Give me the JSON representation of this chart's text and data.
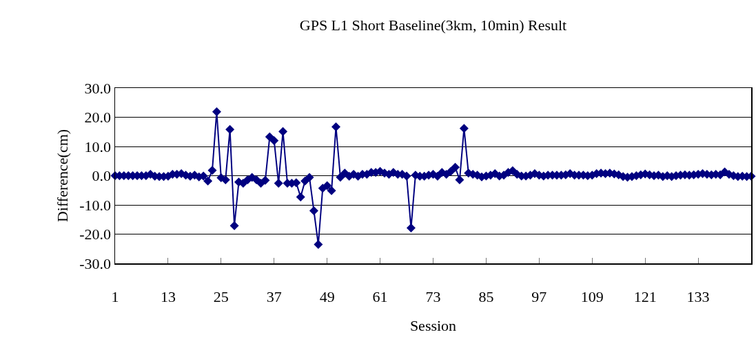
{
  "chart_data": {
    "type": "line",
    "title": "GPS L1 Short Baseline(3km, 10min) Result",
    "xlabel": "Session",
    "ylabel": "Difference(cm)",
    "x": [
      1,
      2,
      3,
      4,
      5,
      6,
      7,
      8,
      9,
      10,
      11,
      12,
      13,
      14,
      15,
      16,
      17,
      18,
      19,
      20,
      21,
      22,
      23,
      24,
      25,
      26,
      27,
      28,
      29,
      30,
      31,
      32,
      33,
      34,
      35,
      36,
      37,
      38,
      39,
      40,
      41,
      42,
      43,
      44,
      45,
      46,
      47,
      48,
      49,
      50,
      51,
      52,
      53,
      54,
      55,
      56,
      57,
      58,
      59,
      60,
      61,
      62,
      63,
      64,
      65,
      66,
      67,
      68,
      69,
      70,
      71,
      72,
      73,
      74,
      75,
      76,
      77,
      78,
      79,
      80,
      81,
      82,
      83,
      84,
      85,
      86,
      87,
      88,
      89,
      90,
      91,
      92,
      93,
      94,
      95,
      96,
      97,
      98,
      99,
      100,
      101,
      102,
      103,
      104,
      105,
      106,
      107,
      108,
      109,
      110,
      111,
      112,
      113,
      114,
      115,
      116,
      117,
      118,
      119,
      120,
      121,
      122,
      123,
      124,
      125,
      126,
      127,
      128,
      129,
      130,
      131,
      132,
      133,
      134,
      135,
      136,
      137,
      138,
      139,
      140,
      141,
      142,
      143,
      144,
      145
    ],
    "series": [
      {
        "color": "#000080",
        "values": [
          0,
          0,
          0,
          0,
          0,
          0,
          0,
          0,
          0.5,
          -0.2,
          -0.3,
          -0.3,
          -0.2,
          0.5,
          0.5,
          0.7,
          0.2,
          -0.2,
          0.2,
          -0.4,
          -0.1,
          -1.8,
          1.8,
          21.9,
          -0.7,
          -1.4,
          15.8,
          -17.1,
          -2.2,
          -2.6,
          -1.4,
          -0.6,
          -1.4,
          -2.6,
          -1.6,
          13.3,
          12.0,
          -2.6,
          15.1,
          -2.6,
          -2.6,
          -2.4,
          -7.3,
          -1.8,
          -0.6,
          -12.0,
          -23.5,
          -4.3,
          -3.4,
          -5.1,
          16.7,
          -0.5,
          0.9,
          -0.2,
          0.5,
          -0.2,
          0.5,
          0.5,
          1.1,
          1.1,
          1.5,
          0.9,
          0.5,
          1.1,
          0.5,
          0.5,
          -0.1,
          -17.9,
          0.2,
          -0.2,
          -0.2,
          0.2,
          0.5,
          -0.2,
          1.1,
          0.5,
          1.5,
          2.9,
          -1.4,
          16.2,
          0.9,
          0.5,
          0.2,
          -0.4,
          -0.1,
          0.2,
          0.7,
          -0.1,
          0.2,
          1.1,
          1.7,
          0.5,
          -0.1,
          -0.1,
          0.2,
          0.7,
          0.2,
          -0.1,
          0.2,
          0.2,
          0.2,
          0.2,
          0.3,
          0.7,
          0.2,
          0.2,
          0.2,
          0,
          0.2,
          0.7,
          0.9,
          0.7,
          0.9,
          0.6,
          0.3,
          -0.3,
          -0.5,
          -0.3,
          0,
          0.3,
          0.6,
          0.3,
          0,
          0.2,
          -0.3,
          0,
          -0.3,
          0,
          0.2,
          0.3,
          0.2,
          0.3,
          0.5,
          0.7,
          0.5,
          0.3,
          0.5,
          0.3,
          1.3,
          0.5,
          0,
          -0.3,
          -0.2,
          -0.3,
          -0.2
        ]
      }
    ],
    "xlim": [
      1,
      145
    ],
    "xticks": [
      1,
      13,
      25,
      37,
      49,
      61,
      73,
      85,
      97,
      109,
      121,
      133,
      {
        "value": 145,
        "label": null
      }
    ],
    "ylim": [
      -30,
      30
    ],
    "yticks": [
      {
        "value": -30,
        "label": "-30.0"
      },
      {
        "value": -20,
        "label": "-20.0"
      },
      {
        "value": -10,
        "label": "-10.0"
      },
      {
        "value": 0,
        "label": "0.0"
      },
      {
        "value": 10,
        "label": "10.0"
      },
      {
        "value": 20,
        "label": "20.0"
      },
      {
        "value": 30,
        "label": "30.0"
      }
    ],
    "grid": "y",
    "marker": "diamond",
    "line_style": "solid"
  }
}
